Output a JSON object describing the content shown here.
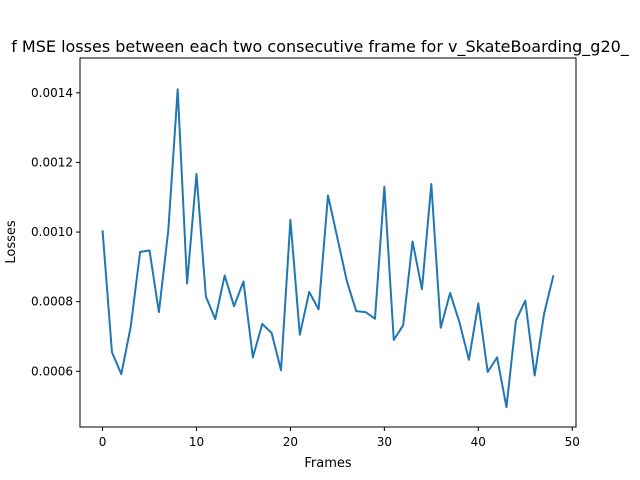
{
  "chart_data": {
    "type": "line",
    "title": "f MSE losses between each two consecutive frame for v_SkateBoarding_g20_",
    "xlabel": "Frames",
    "ylabel": "Losses",
    "xlim": [
      -2.4,
      50.4
    ],
    "ylim": [
      0.00044,
      0.0015
    ],
    "xticks": [
      0,
      10,
      20,
      30,
      40,
      50
    ],
    "xtick_labels": [
      "0",
      "10",
      "20",
      "30",
      "40",
      "50"
    ],
    "yticks": [
      0.0006,
      0.0008,
      0.001,
      0.0012,
      0.0014
    ],
    "ytick_labels": [
      "0.0006",
      "0.0008",
      "0.0010",
      "0.0012",
      "0.0014"
    ],
    "grid": false,
    "series": [
      {
        "color": "#1f77b4",
        "x": [
          0,
          1,
          2,
          3,
          4,
          5,
          6,
          7,
          8,
          9,
          10,
          11,
          12,
          13,
          14,
          15,
          16,
          17,
          18,
          19,
          20,
          21,
          22,
          23,
          24,
          25,
          26,
          27,
          28,
          29,
          30,
          31,
          32,
          33,
          34,
          35,
          36,
          37,
          38,
          39,
          40,
          41,
          42,
          43,
          44,
          45,
          46,
          47,
          48
        ],
        "y": [
          0.001005,
          0.000655,
          0.000592,
          0.000728,
          0.000943,
          0.000947,
          0.00077,
          0.001005,
          0.00141,
          0.000852,
          0.001167,
          0.000815,
          0.00075,
          0.000875,
          0.000787,
          0.000858,
          0.00064,
          0.000736,
          0.00071,
          0.000603,
          0.001035,
          0.000705,
          0.000828,
          0.000778,
          0.001105,
          0.000983,
          0.00086,
          0.000773,
          0.00077,
          0.000751,
          0.00113,
          0.00069,
          0.000732,
          0.000973,
          0.000836,
          0.001138,
          0.000725,
          0.000825,
          0.00074,
          0.000633,
          0.000795,
          0.000598,
          0.00064,
          0.000497,
          0.000745,
          0.000803,
          0.000588,
          0.000765,
          0.000876
        ]
      }
    ]
  }
}
